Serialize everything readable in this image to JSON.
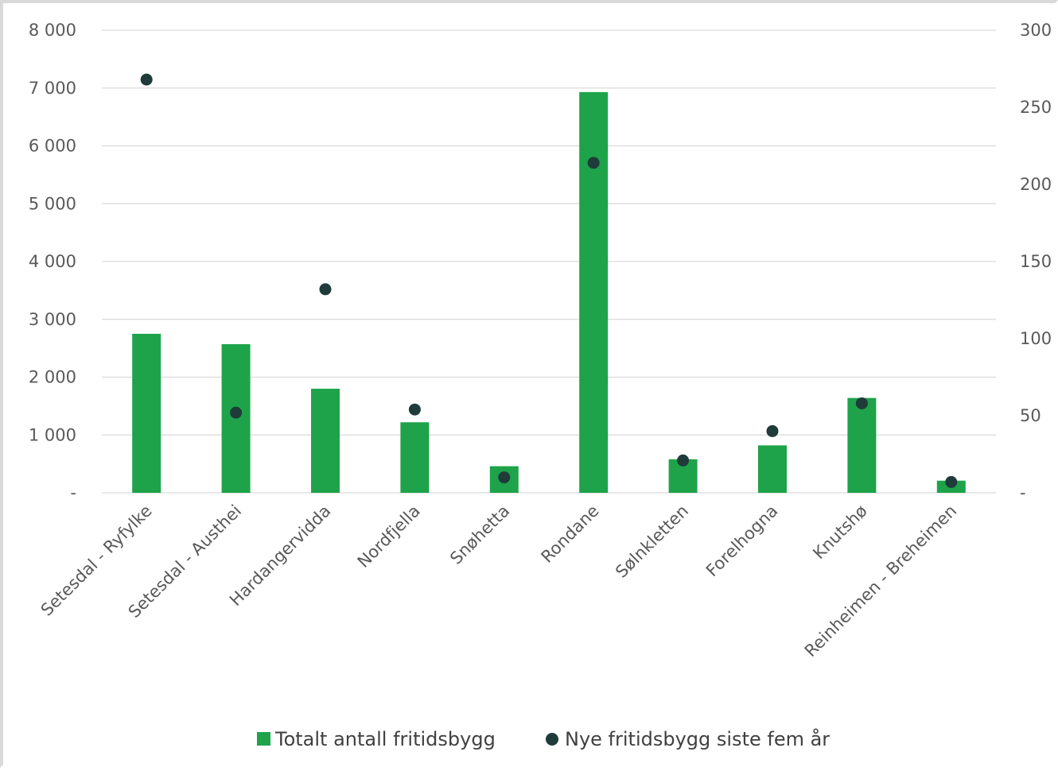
{
  "chart_data": {
    "type": "bar",
    "categories": [
      "Setesdal - Ryfylke",
      "Setesdal - Austhei",
      "Hardangervidda",
      "Nordfjella",
      "Snøhetta",
      "Rondane",
      "Sølnkletten",
      "Forelhogna",
      "Knutshø",
      "Reinheimen - Breheimen"
    ],
    "series": [
      {
        "name": "Totalt antall fritidsbygg",
        "kind": "bar",
        "axis": "left",
        "color": "#1ea34a",
        "values": [
          2750,
          2570,
          1800,
          1220,
          460,
          6930,
          580,
          820,
          1640,
          210
        ]
      },
      {
        "name": "Nye fritidsbygg siste fem år",
        "kind": "scatter",
        "axis": "right",
        "color": "#1f3b3a",
        "values": [
          268,
          52,
          132,
          54,
          10,
          214,
          21,
          40,
          58,
          7
        ]
      }
    ],
    "ylim_left": [
      0,
      8000
    ],
    "ylim_right": [
      0,
      300
    ],
    "yticks_left": [
      "-",
      "1 000",
      "2 000",
      "3 000",
      "4 000",
      "5 000",
      "6 000",
      "7 000",
      "8 000"
    ],
    "yticks_right": [
      "-",
      "50",
      "100",
      "150",
      "200",
      "250",
      "300"
    ],
    "grid": true,
    "legend_position": "bottom"
  }
}
